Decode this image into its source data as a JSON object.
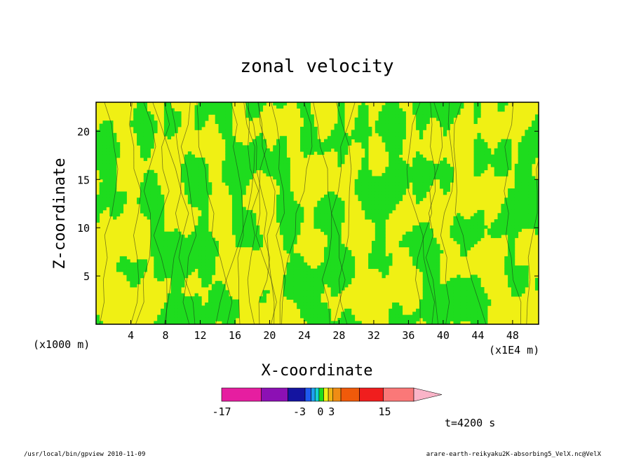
{
  "chart_data": {
    "type": "heatmap",
    "title": "zonal velocity",
    "xlabel": "X-coordinate",
    "ylabel": "Z-coordinate",
    "x_unit_label": "(x1E4 m)",
    "y_unit_label": "(x1000 m)",
    "xlim": [
      0,
      51
    ],
    "ylim": [
      0,
      23
    ],
    "x_ticks": [
      4,
      8,
      12,
      16,
      20,
      24,
      28,
      32,
      36,
      40,
      44,
      48
    ],
    "y_ticks": [
      5,
      10,
      15,
      20
    ],
    "colorbar": {
      "tick_labels": [
        "-17",
        "-3",
        "0",
        "3",
        "15"
      ],
      "tick_values": [
        -17,
        -3,
        0,
        3,
        15
      ],
      "colors": [
        "#e61ea0",
        "#8c10b4",
        "#1414a0",
        "#1e5af0",
        "#1ea0f0",
        "#14d2d2",
        "#1edc1e",
        "#f0f014",
        "#f0b414",
        "#f08c14",
        "#f05a0a",
        "#f01e1e",
        "#fa7878",
        "#fab4c8"
      ],
      "visible_field_colors": {
        "negative": "#1edc1e",
        "positive": "#f0f014"
      }
    },
    "time_label": "t=4200 s"
  },
  "footer": {
    "left": "/usr/local/bin/gpview  2010-11-09",
    "right": "arare-earth-reikyaku2K-absorbing5_VelX.nc@VelX"
  },
  "colors": {
    "green": "#1edc1e",
    "yellow": "#f0f014",
    "contour": "#1a1a1a"
  }
}
